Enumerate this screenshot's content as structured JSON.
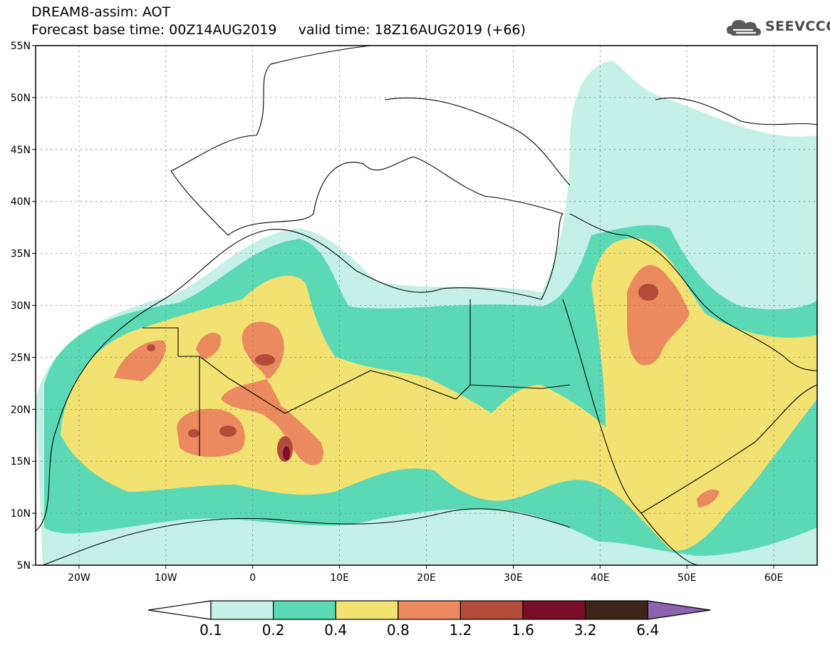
{
  "title_line1": "DREAM8-assim: AOT",
  "title_line2": "Forecast base time: 00Z14AUG2019     valid time: 18Z16AUG2019 (+66)",
  "logo": {
    "text": "SEEVCCC",
    "icon": "cloud-icon"
  },
  "map": {
    "lon_range": [
      -25,
      65
    ],
    "lat_range": [
      5,
      55
    ],
    "lat_ticks": [
      "5N",
      "10N",
      "15N",
      "20N",
      "25N",
      "30N",
      "35N",
      "40N",
      "45N",
      "50N",
      "55N"
    ],
    "lon_ticks": [
      "20W",
      "10W",
      "0",
      "10E",
      "20E",
      "30E",
      "40E",
      "50E",
      "60E"
    ]
  },
  "colorbar": {
    "colors": [
      "#ffffff",
      "#c4f0e8",
      "#5ad9b4",
      "#f2e272",
      "#eb8a5f",
      "#b24b3a",
      "#7b0f2b",
      "#3b2617",
      "#8a62b0"
    ],
    "labels": [
      "0.1",
      "0.2",
      "0.4",
      "0.8",
      "1.2",
      "1.6",
      "3.2",
      "6.4"
    ]
  }
}
